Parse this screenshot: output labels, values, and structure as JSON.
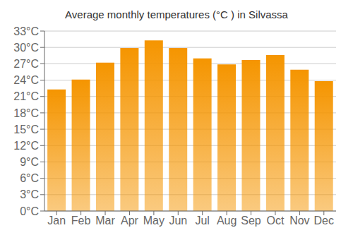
{
  "chart_data": {
    "type": "bar",
    "title": "Average monthly temperatures (°C ) in Silvassa",
    "categories": [
      "Jan",
      "Feb",
      "Mar",
      "Apr",
      "May",
      "Jun",
      "Jul",
      "Aug",
      "Sep",
      "Oct",
      "Nov",
      "Dec"
    ],
    "values": [
      22.3,
      24.1,
      27.2,
      29.9,
      31.3,
      29.9,
      28.0,
      26.9,
      27.7,
      28.6,
      25.9,
      23.8
    ],
    "color": "#F59500",
    "ylim": [
      0,
      33
    ],
    "yticks": [
      {
        "value": 0,
        "label": "0°C"
      },
      {
        "value": 3,
        "label": "3°C"
      },
      {
        "value": 6,
        "label": "6°C"
      },
      {
        "value": 9,
        "label": "9°C"
      },
      {
        "value": 12,
        "label": "12°C"
      },
      {
        "value": 15,
        "label": "15°C"
      },
      {
        "value": 18,
        "label": "18°C"
      },
      {
        "value": 21,
        "label": "21°C"
      },
      {
        "value": 24,
        "label": "24°C"
      },
      {
        "value": 27,
        "label": "27°C"
      },
      {
        "value": 30,
        "label": "30°C"
      },
      {
        "value": 33,
        "label": "33°C"
      }
    ],
    "grid": true
  }
}
